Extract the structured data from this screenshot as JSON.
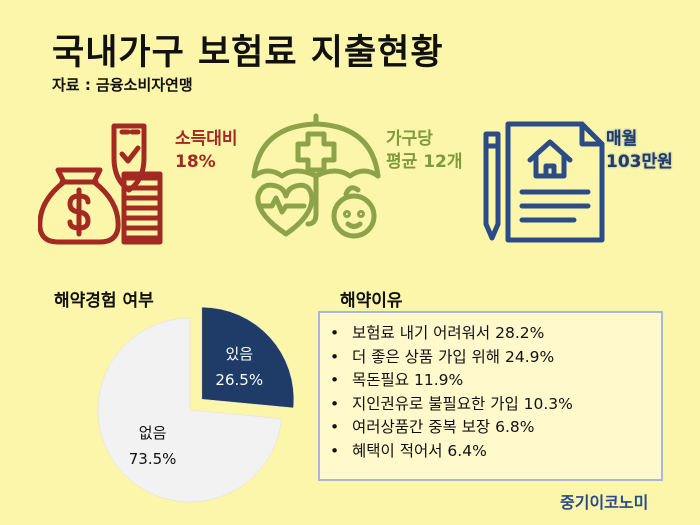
{
  "header": {
    "title": "국내가구 보험료 지출현황",
    "source": "자료 : 금융소비자연맹"
  },
  "stats": {
    "income_ratio_label": "소득대비",
    "income_ratio_value": "18%",
    "per_household_label": "가구당",
    "per_household_value": "평균 12개",
    "monthly_label": "매월",
    "monthly_value": "103만원"
  },
  "icons": {
    "money": "money-bag-coins-icon",
    "insurance": "umbrella-health-family-icon",
    "document": "house-document-pen-icon"
  },
  "colors": {
    "background": "#fbf6a9",
    "red": "#a32a22",
    "green": "#8ca34a",
    "navy": "#1f3b67",
    "pie_light": "#f2f2f2",
    "brand": "#2c4a87"
  },
  "reasons": {
    "title": "해약이유",
    "bullet": "•",
    "items": [
      "보험료 내기 어려워서 28.2%",
      "더 좋은 상품 가입 위해 24.9%",
      "목돈필요 11.9%",
      "지인권유로 불필요한 가입 10.3%",
      "여러상품간 중복 보장 6.8%",
      "혜택이 적어서 6.4%"
    ]
  },
  "chart_data": {
    "type": "pie",
    "title": "해약경험 여부",
    "slices": [
      {
        "label": "있음",
        "value": 26.5,
        "value_label": "26.5%",
        "color": "#1f3b67"
      },
      {
        "label": "없음",
        "value": 73.5,
        "value_label": "73.5%",
        "color": "#f2f2f2"
      }
    ],
    "start_angle_deg": 0,
    "exploded": "있음"
  },
  "footer": {
    "brand": "중기이코노미"
  }
}
